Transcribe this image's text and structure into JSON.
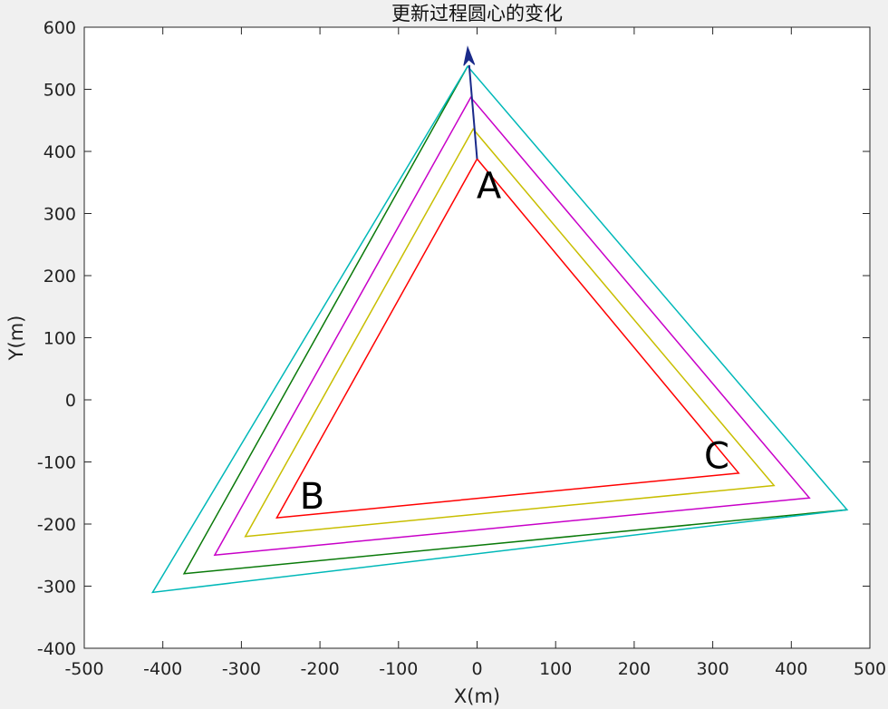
{
  "chart_data": {
    "type": "line",
    "title": "更新过程圆心的变化",
    "xlabel": "X(m)",
    "ylabel": "Y(m)",
    "xlim": [
      -500,
      500
    ],
    "ylim": [
      -400,
      600
    ],
    "xticks": [
      -500,
      -400,
      -300,
      -200,
      -100,
      0,
      100,
      200,
      300,
      400,
      500
    ],
    "yticks": [
      -400,
      -300,
      -200,
      -100,
      0,
      100,
      200,
      300,
      400,
      500,
      600
    ],
    "grid": false,
    "series": [
      {
        "color": "#ff0000",
        "closed": true,
        "points": [
          [
            0,
            388
          ],
          [
            -255,
            -190
          ],
          [
            333,
            -118
          ]
        ]
      },
      {
        "color": "#c8be00",
        "closed": true,
        "points": [
          [
            -5,
            436
          ],
          [
            -295,
            -220
          ],
          [
            378,
            -138
          ]
        ]
      },
      {
        "color": "#c800c8",
        "closed": true,
        "points": [
          [
            -8,
            487
          ],
          [
            -334,
            -250
          ],
          [
            423,
            -158
          ]
        ]
      },
      {
        "color": "#0a7a0a",
        "closed": false,
        "points": [
          [
            -12,
            537
          ],
          [
            -373,
            -280
          ],
          [
            471,
            -177
          ]
        ]
      },
      {
        "color": "#00b8b8",
        "closed": true,
        "points": [
          [
            -12,
            537
          ],
          [
            -413,
            -310
          ],
          [
            471,
            -177
          ]
        ]
      }
    ],
    "arrow": {
      "color": "#1a2a8a",
      "from": [
        0,
        388
      ],
      "to": [
        -12,
        568
      ]
    },
    "annotations": [
      {
        "text": "A",
        "x": 15,
        "y": 345
      },
      {
        "text": "B",
        "x": -210,
        "y": -155
      },
      {
        "text": "C",
        "x": 305,
        "y": -90
      }
    ]
  }
}
